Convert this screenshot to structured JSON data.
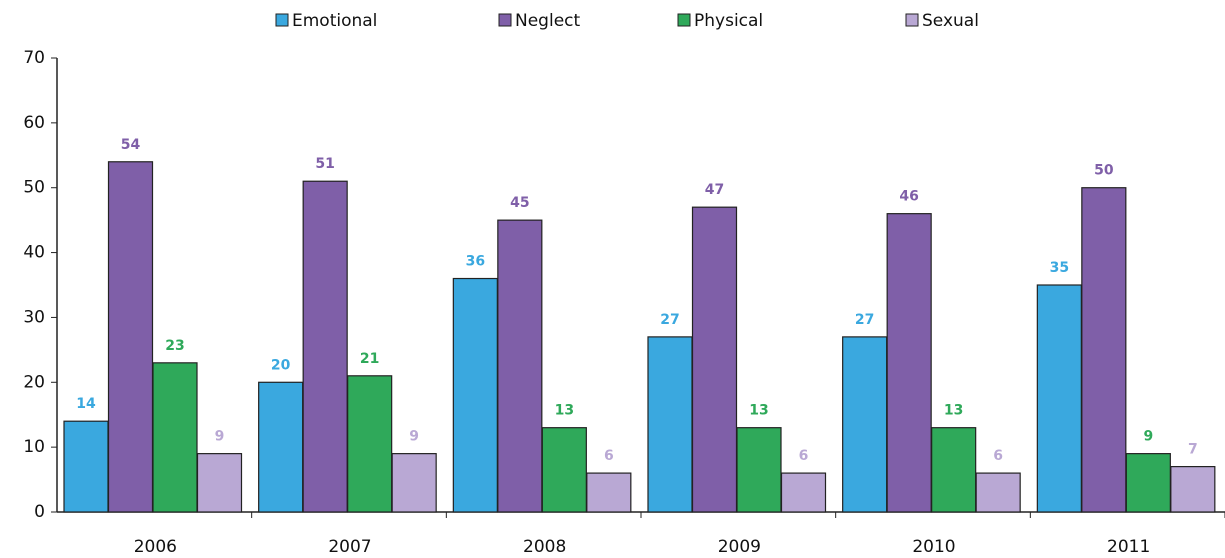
{
  "chart_data": {
    "type": "bar",
    "categories": [
      "2006",
      "2007",
      "2008",
      "2009",
      "2010",
      "2011"
    ],
    "series": [
      {
        "name": "Emotional",
        "color": "#3aa8df",
        "values": [
          14,
          20,
          36,
          27,
          27,
          35
        ]
      },
      {
        "name": "Neglect",
        "color": "#7f5fa8",
        "values": [
          54,
          51,
          45,
          47,
          46,
          50
        ]
      },
      {
        "name": "Physical",
        "color": "#2fa95a",
        "values": [
          23,
          21,
          13,
          13,
          13,
          9
        ]
      },
      {
        "name": "Sexual",
        "color": "#b9a8d4",
        "values": [
          9,
          9,
          6,
          6,
          6,
          7
        ]
      }
    ],
    "ylim": [
      0,
      70
    ],
    "yticks": [
      0,
      10,
      20,
      30,
      40,
      50,
      60,
      70
    ],
    "grid": false,
    "legend": "top"
  }
}
